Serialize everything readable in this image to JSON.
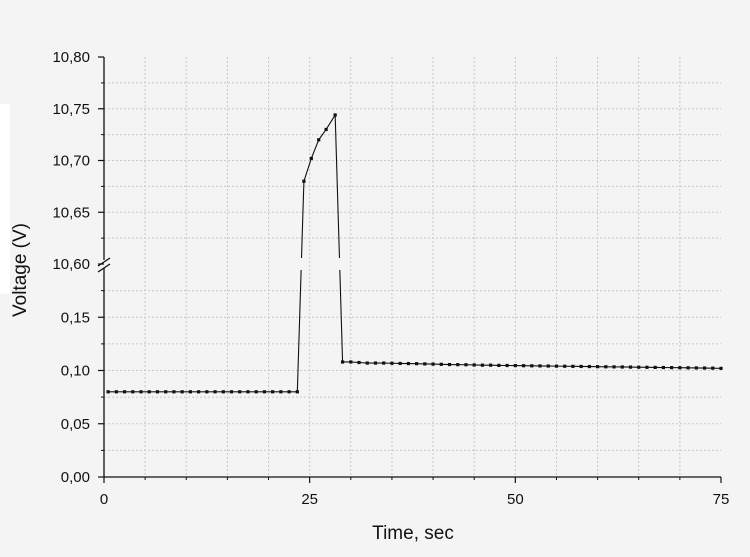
{
  "chart_data": {
    "type": "line",
    "title": "",
    "xlabel": "Time, sec",
    "ylabel": "Voltage (V)",
    "xlim": [
      0,
      75
    ],
    "x_ticks": [
      0,
      25,
      50,
      75
    ],
    "x_tick_labels": [
      "0",
      "25",
      "50",
      "75"
    ],
    "y_axis_break": {
      "lower_range": [
        0.0,
        0.2
      ],
      "upper_range": [
        10.6,
        10.8
      ]
    },
    "y_ticks_lower": [
      0.0,
      0.05,
      0.1,
      0.15
    ],
    "y_tick_labels_lower": [
      "0,00",
      "0,05",
      "0,10",
      "0,15"
    ],
    "y_ticks_upper": [
      10.6,
      10.65,
      10.7,
      10.75,
      10.8
    ],
    "y_tick_labels_upper": [
      "10,60",
      "10,65",
      "10,70",
      "10,75",
      "10,80"
    ],
    "grid": true,
    "legend": "none",
    "series": [
      {
        "color": "#111111",
        "marker": "square",
        "x": [
          0.5,
          1.5,
          2.5,
          3.5,
          4.5,
          5.5,
          6.5,
          7.5,
          8.5,
          9.5,
          10.5,
          11.5,
          12.5,
          13.5,
          14.5,
          15.5,
          16.5,
          17.5,
          18.5,
          19.5,
          20.5,
          21.5,
          22.5,
          23.5,
          24.3,
          25.2,
          26.1,
          27.0,
          28.1,
          29.0,
          30,
          31,
          32,
          33,
          34,
          35,
          36,
          37,
          38,
          39,
          40,
          41,
          42,
          43,
          44,
          45,
          46,
          47,
          48,
          49,
          50,
          51,
          52,
          53,
          54,
          55,
          56,
          57,
          58,
          59,
          60,
          61,
          62,
          63,
          64,
          65,
          66,
          67,
          68,
          69,
          70,
          71,
          72,
          73,
          74,
          75
        ],
        "y": [
          0.08,
          0.08,
          0.08,
          0.08,
          0.08,
          0.08,
          0.08,
          0.08,
          0.08,
          0.08,
          0.08,
          0.08,
          0.08,
          0.08,
          0.08,
          0.08,
          0.08,
          0.08,
          0.08,
          0.08,
          0.08,
          0.08,
          0.08,
          0.08,
          10.68,
          10.702,
          10.72,
          10.73,
          10.744,
          0.108,
          0.108,
          0.1075,
          0.107,
          0.107,
          0.107,
          0.1068,
          0.1066,
          0.1065,
          0.1064,
          0.1062,
          0.106,
          0.1058,
          0.1056,
          0.1055,
          0.1054,
          0.1052,
          0.105,
          0.105,
          0.1048,
          0.1047,
          0.1046,
          0.1045,
          0.1044,
          0.1043,
          0.1042,
          0.1041,
          0.104,
          0.1039,
          0.1038,
          0.1037,
          0.1036,
          0.1035,
          0.1034,
          0.1033,
          0.1032,
          0.1031,
          0.103,
          0.1029,
          0.1028,
          0.1027,
          0.1026,
          0.1025,
          0.1024,
          0.1023,
          0.1022,
          0.102
        ]
      }
    ]
  }
}
